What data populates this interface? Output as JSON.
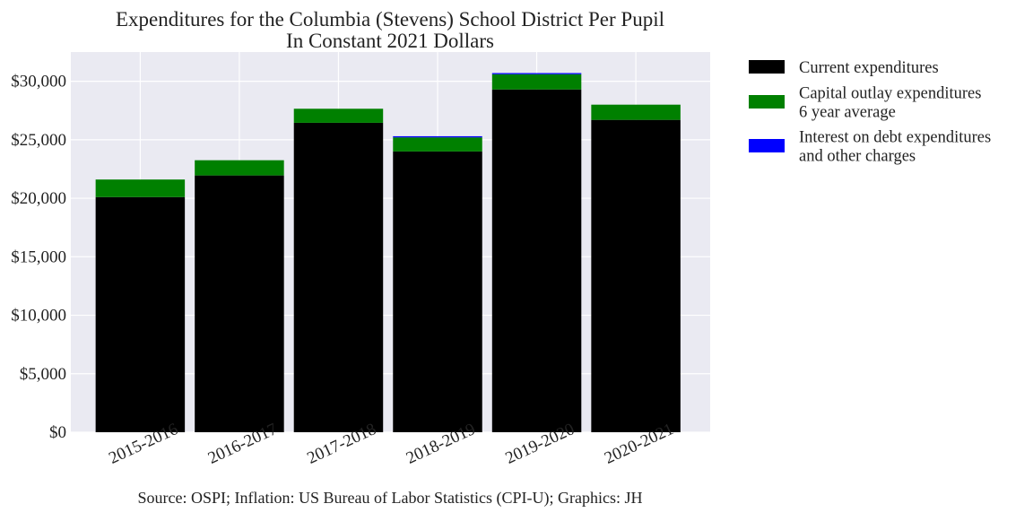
{
  "chart_data": {
    "type": "bar",
    "stacked": true,
    "title": "Expenditures for the Columbia (Stevens) School District Per Pupil",
    "subtitle": "In Constant 2021 Dollars",
    "xlabel": "",
    "ylabel": "",
    "categories": [
      "2015-2016",
      "2016-2017",
      "2017-2018",
      "2018-2019",
      "2019-2020",
      "2020-2021"
    ],
    "series": [
      {
        "name": "Current expenditures",
        "color": "#000000",
        "values": [
          20100,
          21950,
          26450,
          24000,
          29300,
          26700
        ]
      },
      {
        "name": "Capital outlay expenditures\n6 year average",
        "color": "#008000",
        "values": [
          1500,
          1300,
          1200,
          1200,
          1300,
          1300
        ]
      },
      {
        "name": "Interest on debt expenditures\nand other charges",
        "color": "#0000ff",
        "values": [
          0,
          0,
          0,
          100,
          100,
          0
        ]
      }
    ],
    "ylim": [
      0,
      32500
    ],
    "yticks": [
      0,
      5000,
      10000,
      15000,
      20000,
      25000,
      30000
    ],
    "ytick_labels": [
      "$0",
      "$5,000",
      "$10,000",
      "$15,000",
      "$20,000",
      "$25,000",
      "$30,000"
    ],
    "grid": true,
    "legend_position": "outside-right-top",
    "background_color": "#eaeaf2",
    "source_note": "Source: OSPI; Inflation: US Bureau of Labor Statistics (CPI-U); Graphics: JH"
  }
}
